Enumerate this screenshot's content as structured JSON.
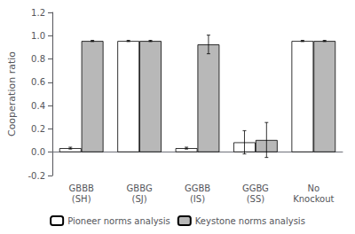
{
  "chart_data": {
    "type": "bar",
    "categories": [
      "GBBB\n(SH)",
      "GBBG\n(SJ)",
      "GGBB\n(IS)",
      "GGBG\n(SS)",
      "No\nKnockout"
    ],
    "series": [
      {
        "name": "Pioneer norms analysis",
        "color": "#ffffff",
        "values": [
          0.035,
          0.955,
          0.035,
          0.085,
          0.955
        ],
        "errors": [
          0.008,
          0.005,
          0.008,
          0.1,
          0.005
        ]
      },
      {
        "name": "Keystone norms analysis",
        "color": "#b8b8b8",
        "values": [
          0.955,
          0.955,
          0.925,
          0.105,
          0.955
        ],
        "errors": [
          0.005,
          0.005,
          0.08,
          0.15,
          0.005
        ]
      }
    ],
    "ylabel": "Cooperation ratio",
    "ylim": [
      -0.2,
      1.2
    ],
    "yticks": [
      -0.2,
      {
        "value": 0.0,
        "label": "0.0"
      },
      0.2,
      0.4,
      0.6,
      0.8,
      {
        "value": 1.0,
        "label": "1.0"
      },
      1.2
    ],
    "grid": false,
    "legend": "bottom"
  }
}
